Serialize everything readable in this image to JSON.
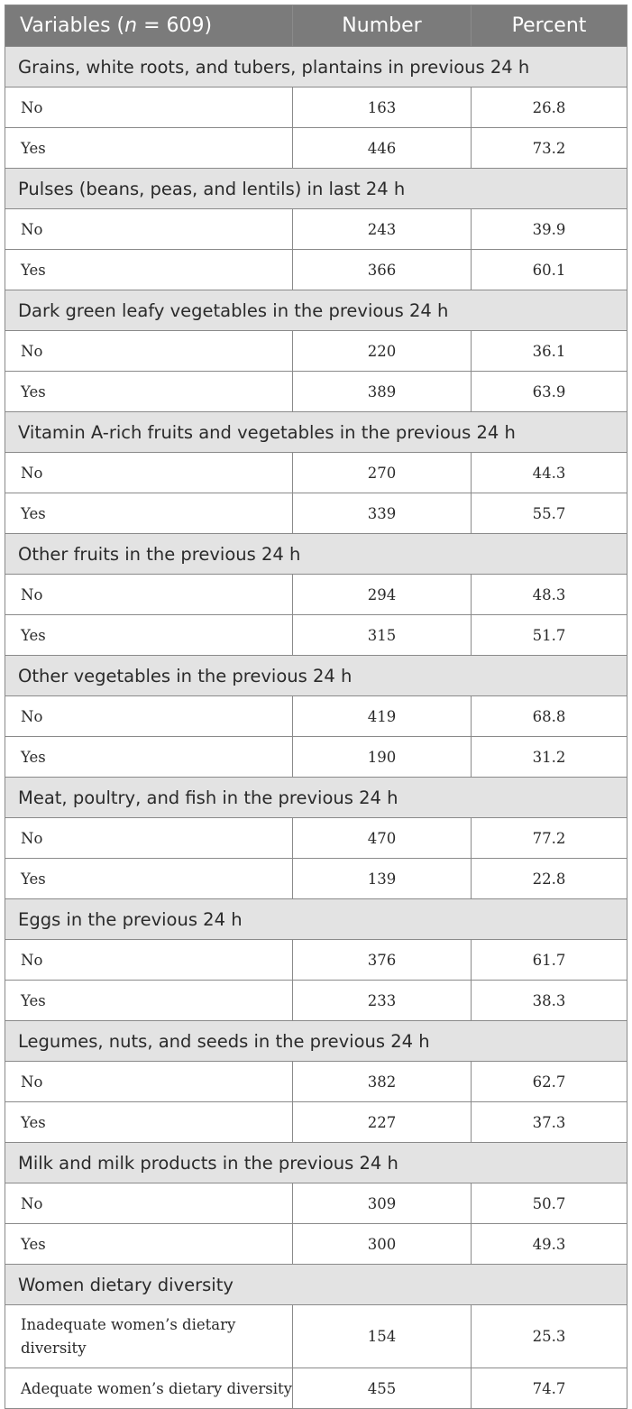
{
  "table": {
    "headers": {
      "variables_prefix": "Variables (",
      "variables_n": "n",
      "variables_suffix": " = 609)",
      "number": "Number",
      "percent": "Percent"
    },
    "sections": [
      {
        "title": "Grains, white roots, and tubers, plantains in previous 24 h",
        "rows": [
          {
            "label": "No",
            "number": "163",
            "percent": "26.8"
          },
          {
            "label": "Yes",
            "number": "446",
            "percent": "73.2"
          }
        ]
      },
      {
        "title": "Pulses (beans, peas, and lentils) in last 24 h",
        "rows": [
          {
            "label": "No",
            "number": "243",
            "percent": "39.9"
          },
          {
            "label": "Yes",
            "number": "366",
            "percent": "60.1"
          }
        ]
      },
      {
        "title": "Dark green leafy vegetables in the previous 24 h",
        "rows": [
          {
            "label": "No",
            "number": "220",
            "percent": "36.1"
          },
          {
            "label": "Yes",
            "number": "389",
            "percent": "63.9"
          }
        ]
      },
      {
        "title": "Vitamin A-rich fruits and vegetables in the previous 24 h",
        "rows": [
          {
            "label": "No",
            "number": "270",
            "percent": "44.3"
          },
          {
            "label": "Yes",
            "number": "339",
            "percent": "55.7"
          }
        ]
      },
      {
        "title": "Other fruits in the previous 24 h",
        "rows": [
          {
            "label": "No",
            "number": "294",
            "percent": "48.3"
          },
          {
            "label": "Yes",
            "number": "315",
            "percent": "51.7"
          }
        ]
      },
      {
        "title": "Other vegetables in the previous 24 h",
        "rows": [
          {
            "label": "No",
            "number": "419",
            "percent": "68.8"
          },
          {
            "label": "Yes",
            "number": "190",
            "percent": "31.2"
          }
        ]
      },
      {
        "title": "Meat, poultry, and fish in the previous 24 h",
        "rows": [
          {
            "label": "No",
            "number": "470",
            "percent": "77.2"
          },
          {
            "label": "Yes",
            "number": "139",
            "percent": "22.8"
          }
        ]
      },
      {
        "title": "Eggs in the previous 24 h",
        "rows": [
          {
            "label": "No",
            "number": "376",
            "percent": "61.7"
          },
          {
            "label": "Yes",
            "number": "233",
            "percent": "38.3"
          }
        ]
      },
      {
        "title": "Legumes, nuts, and seeds in the previous 24 h",
        "rows": [
          {
            "label": "No",
            "number": "382",
            "percent": "62.7"
          },
          {
            "label": "Yes",
            "number": "227",
            "percent": "37.3"
          }
        ]
      },
      {
        "title": "Milk and milk products in the previous 24 h",
        "rows": [
          {
            "label": "No",
            "number": "309",
            "percent": "50.7"
          },
          {
            "label": "Yes",
            "number": "300",
            "percent": "49.3"
          }
        ]
      },
      {
        "title": "Women dietary diversity",
        "rows": [
          {
            "label": "Inadequate women’s dietary diversity",
            "number": "154",
            "percent": "25.3"
          },
          {
            "label": "Adequate women’s dietary diversity",
            "number": "455",
            "percent": "74.7"
          }
        ]
      }
    ]
  },
  "colors": {
    "header_bg": "#7b7b7b",
    "header_text": "#ffffff",
    "section_bg": "#e3e3e3",
    "border": "#8a8a8a"
  }
}
